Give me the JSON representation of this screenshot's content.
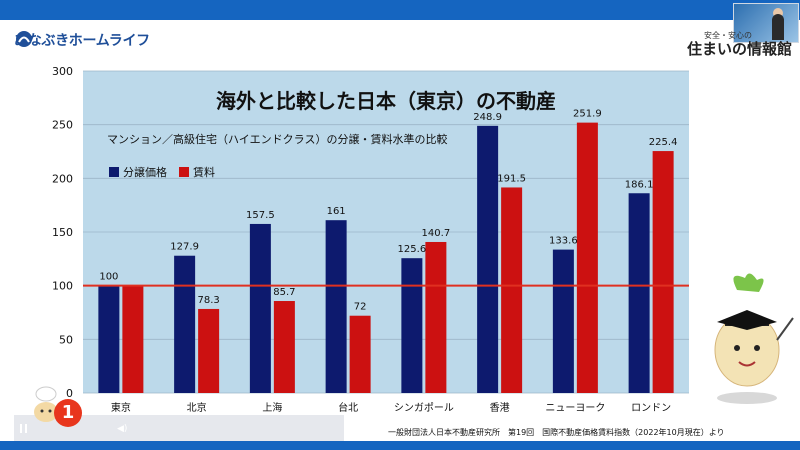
{
  "header": {
    "logo_text": "あなぶきホームライフ",
    "brand_sub": "安全・安心の",
    "brand_main": "住まいの情報館"
  },
  "colors": {
    "accent_bar": "#1565c0",
    "chart_bg": "#bcd9ea",
    "series_sale": "#0d1a6e",
    "series_rent": "#cc1111",
    "reference_line": "#e03020"
  },
  "chart_data": {
    "type": "bar",
    "title": "海外と比較した日本（東京）の不動産",
    "subtitle": "マンション／高級住宅（ハイエンドクラス）の分譲・賃料水準の比較",
    "categories": [
      "東京",
      "北京",
      "上海",
      "台北",
      "シンガポール",
      "香港",
      "ニューヨーク",
      "ロンドン"
    ],
    "series": [
      {
        "name": "分譲価格",
        "values": [
          100,
          127.9,
          157.5,
          161,
          125.6,
          248.9,
          133.6,
          186.1
        ]
      },
      {
        "name": "賃料",
        "values": [
          100,
          78.3,
          85.7,
          72,
          140.7,
          191.5,
          251.9,
          225.4
        ]
      }
    ],
    "data_labels": [
      [
        "100",
        "127.9",
        "157.5",
        "161",
        "125.6",
        "248.9",
        "133.6",
        "186.1"
      ],
      [
        "",
        "78.3",
        "85.7",
        "72",
        "140.7",
        "191.5",
        "251.9",
        "225.4"
      ]
    ],
    "y_ticks": [
      "0",
      "50",
      "100",
      "150",
      "200",
      "250",
      "300"
    ],
    "ylim": [
      0,
      300
    ],
    "reference_line": 100,
    "grid": true,
    "legend_position": "top-left"
  },
  "footer": {
    "source": "一般財団法人日本不動産研究所　第19回　国際不動産価格賃料指数（2022年10月現在）より",
    "badge": "1"
  }
}
